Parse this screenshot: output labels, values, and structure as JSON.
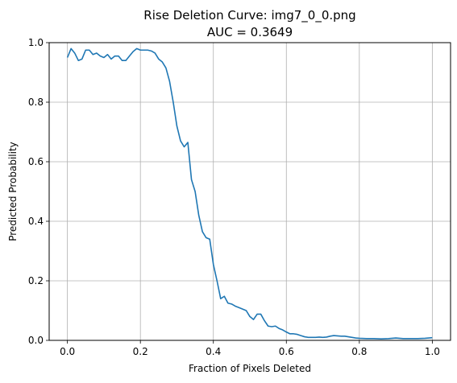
{
  "chart_data": {
    "type": "line",
    "title_line1": "Rise Deletion Curve: img7_0_0.png",
    "title_line2": "AUC = 0.3649",
    "xlabel": "Fraction of Pixels Deleted",
    "ylabel": "Predicted Probability",
    "xlim": [
      -0.05,
      1.05
    ],
    "ylim": [
      0.0,
      1.0
    ],
    "xticks": [
      "0.0",
      "0.2",
      "0.4",
      "0.6",
      "0.8",
      "1.0"
    ],
    "yticks": [
      "0.0",
      "0.2",
      "0.4",
      "0.6",
      "0.8",
      "1.0"
    ],
    "xtick_values": [
      0.0,
      0.2,
      0.4,
      0.6,
      0.8,
      1.0
    ],
    "ytick_values": [
      0.0,
      0.2,
      0.4,
      0.6,
      0.8,
      1.0
    ],
    "grid": true,
    "line_color": "#1f77b4",
    "series": [
      {
        "x": [
          0.0,
          0.01,
          0.02,
          0.03,
          0.04,
          0.05,
          0.06,
          0.07,
          0.08,
          0.09,
          0.1,
          0.11,
          0.12,
          0.13,
          0.14,
          0.15,
          0.16,
          0.17,
          0.18,
          0.19,
          0.2,
          0.21,
          0.22,
          0.23,
          0.24,
          0.25,
          0.26,
          0.27,
          0.28,
          0.29,
          0.3,
          0.31,
          0.32,
          0.33,
          0.34,
          0.35,
          0.36,
          0.37,
          0.38,
          0.39,
          0.4,
          0.41,
          0.42,
          0.43,
          0.44,
          0.45,
          0.46,
          0.47,
          0.48,
          0.49,
          0.5,
          0.51,
          0.52,
          0.53,
          0.54,
          0.55,
          0.56,
          0.57,
          0.58,
          0.59,
          0.6,
          0.61,
          0.62,
          0.63,
          0.64,
          0.65,
          0.66,
          0.67,
          0.68,
          0.69,
          0.7,
          0.71,
          0.72,
          0.73,
          0.74,
          0.75,
          0.76,
          0.77,
          0.78,
          0.79,
          0.8,
          0.82,
          0.84,
          0.86,
          0.88,
          0.9,
          0.92,
          0.94,
          0.96,
          0.98,
          1.0
        ],
        "y": [
          0.95,
          0.98,
          0.965,
          0.94,
          0.945,
          0.975,
          0.975,
          0.96,
          0.965,
          0.955,
          0.95,
          0.96,
          0.945,
          0.955,
          0.955,
          0.94,
          0.94,
          0.955,
          0.97,
          0.98,
          0.975,
          0.975,
          0.975,
          0.972,
          0.965,
          0.945,
          0.935,
          0.915,
          0.87,
          0.8,
          0.72,
          0.67,
          0.65,
          0.665,
          0.54,
          0.5,
          0.42,
          0.365,
          0.345,
          0.34,
          0.255,
          0.2,
          0.14,
          0.148,
          0.125,
          0.122,
          0.115,
          0.11,
          0.105,
          0.1,
          0.08,
          0.07,
          0.088,
          0.088,
          0.066,
          0.048,
          0.046,
          0.048,
          0.04,
          0.035,
          0.028,
          0.022,
          0.022,
          0.02,
          0.016,
          0.012,
          0.01,
          0.01,
          0.01,
          0.011,
          0.01,
          0.011,
          0.014,
          0.016,
          0.015,
          0.014,
          0.014,
          0.012,
          0.01,
          0.008,
          0.007,
          0.006,
          0.006,
          0.005,
          0.006,
          0.008,
          0.006,
          0.006,
          0.006,
          0.007,
          0.009
        ]
      }
    ]
  }
}
